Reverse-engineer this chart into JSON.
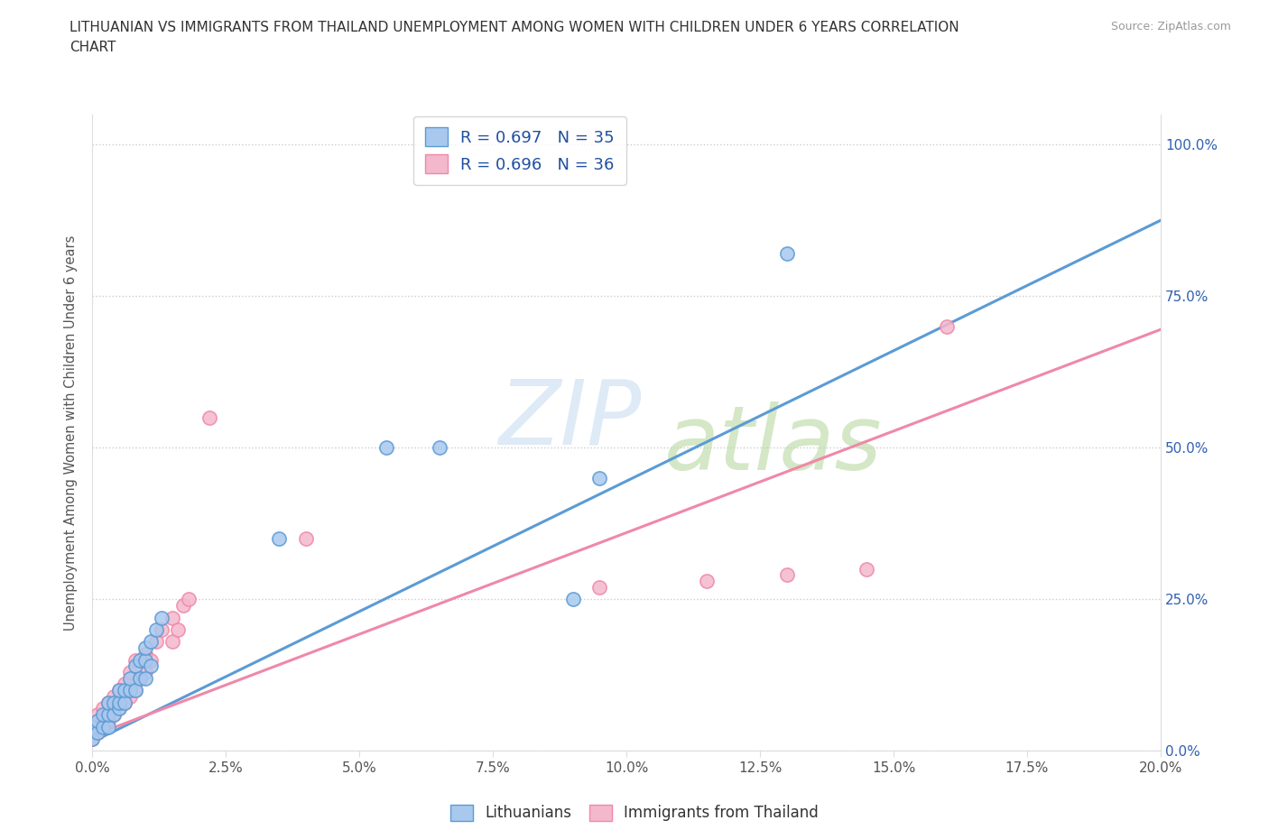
{
  "title": "LITHUANIAN VS IMMIGRANTS FROM THAILAND UNEMPLOYMENT AMONG WOMEN WITH CHILDREN UNDER 6 YEARS CORRELATION\nCHART",
  "source": "Source: ZipAtlas.com",
  "xlabel_ticks": [
    "0.0%",
    "2.5%",
    "5.0%",
    "7.5%",
    "10.0%",
    "12.5%",
    "15.0%",
    "17.5%",
    "20.0%"
  ],
  "ylabel_ticks": [
    "0.0%",
    "25.0%",
    "50.0%",
    "75.0%",
    "100.0%"
  ],
  "ylabel": "Unemployment Among Women with Children Under 6 years",
  "legend_entries": [
    {
      "label": "R = 0.697   N = 35",
      "color": "#a8c4e0"
    },
    {
      "label": "R = 0.696   N = 36",
      "color": "#f4b8c8"
    }
  ],
  "legend_labels_bottom": [
    "Lithuanians",
    "Immigrants from Thailand"
  ],
  "blue_color": "#5b9bd5",
  "pink_color": "#f088a8",
  "blue_scatter_color": "#a8c8ee",
  "pink_scatter_color": "#f4b8cc",
  "blue_scatter_x": [
    0.0,
    0.0,
    0.001,
    0.001,
    0.002,
    0.002,
    0.003,
    0.003,
    0.003,
    0.004,
    0.004,
    0.005,
    0.005,
    0.005,
    0.006,
    0.006,
    0.007,
    0.007,
    0.008,
    0.008,
    0.009,
    0.009,
    0.01,
    0.01,
    0.01,
    0.011,
    0.011,
    0.012,
    0.013,
    0.035,
    0.055,
    0.065,
    0.09,
    0.095,
    0.13
  ],
  "blue_scatter_y": [
    0.02,
    0.04,
    0.03,
    0.05,
    0.04,
    0.06,
    0.04,
    0.06,
    0.08,
    0.06,
    0.08,
    0.07,
    0.08,
    0.1,
    0.08,
    0.1,
    0.1,
    0.12,
    0.1,
    0.14,
    0.12,
    0.15,
    0.12,
    0.15,
    0.17,
    0.14,
    0.18,
    0.2,
    0.22,
    0.35,
    0.5,
    0.5,
    0.25,
    0.45,
    0.82
  ],
  "pink_scatter_x": [
    0.0,
    0.0,
    0.001,
    0.001,
    0.002,
    0.002,
    0.003,
    0.003,
    0.004,
    0.004,
    0.005,
    0.005,
    0.006,
    0.006,
    0.007,
    0.007,
    0.008,
    0.008,
    0.009,
    0.01,
    0.01,
    0.011,
    0.012,
    0.013,
    0.015,
    0.015,
    0.016,
    0.017,
    0.018,
    0.022,
    0.04,
    0.095,
    0.115,
    0.13,
    0.145,
    0.16
  ],
  "pink_scatter_y": [
    0.02,
    0.04,
    0.03,
    0.06,
    0.04,
    0.07,
    0.05,
    0.08,
    0.06,
    0.09,
    0.07,
    0.1,
    0.08,
    0.11,
    0.09,
    0.13,
    0.1,
    0.15,
    0.12,
    0.13,
    0.16,
    0.15,
    0.18,
    0.2,
    0.18,
    0.22,
    0.2,
    0.24,
    0.25,
    0.55,
    0.35,
    0.27,
    0.28,
    0.29,
    0.3,
    0.7
  ],
  "xlim": [
    0.0,
    0.2
  ],
  "ylim": [
    0.0,
    1.05
  ],
  "blue_line_x": [
    0.0,
    0.2
  ],
  "blue_line_y": [
    0.015,
    0.875
  ],
  "pink_line_x": [
    0.0,
    0.2
  ],
  "pink_line_y": [
    0.025,
    0.695
  ]
}
